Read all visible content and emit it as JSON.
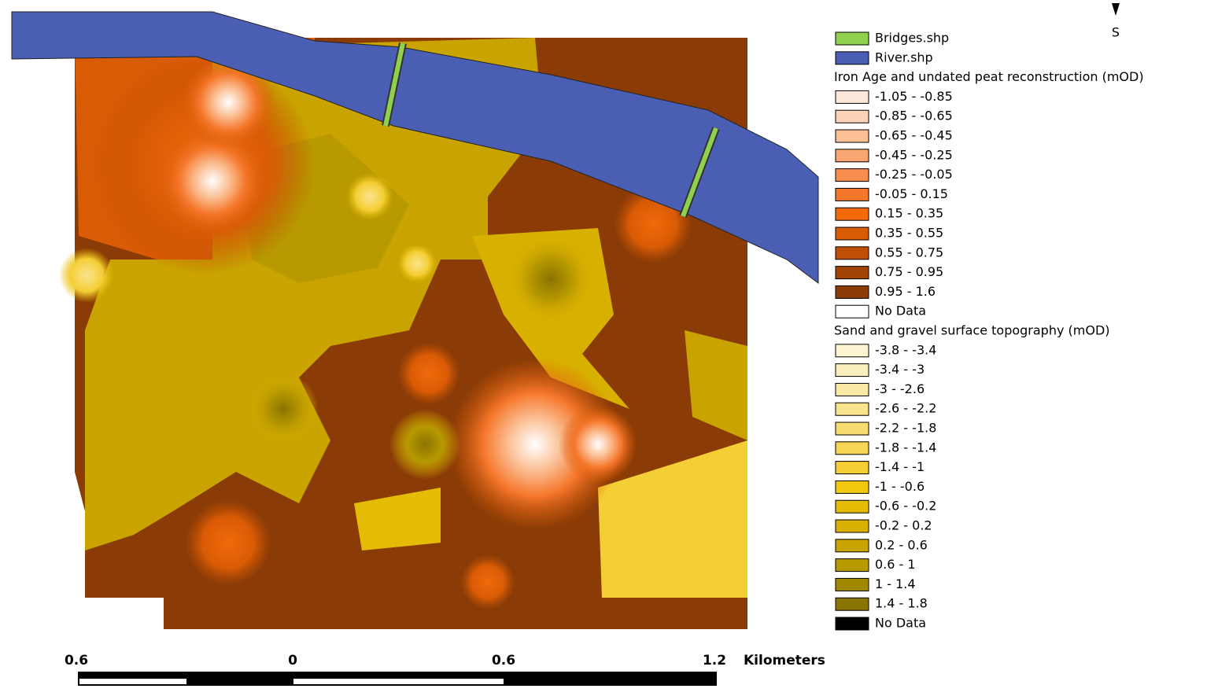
{
  "map": {
    "north_label": "S",
    "layers": [
      {
        "label": "Bridges.shp",
        "color": "#8fd14f"
      },
      {
        "label": "River.shp",
        "color": "#4a5fb4"
      }
    ],
    "groups": [
      {
        "title": "Iron Age and undated peat reconstruction (mOD)",
        "classes": [
          {
            "label": "-1.05 - -0.85",
            "color": "#fde6da"
          },
          {
            "label": "-0.85 - -0.65",
            "color": "#fcd3b8"
          },
          {
            "label": "-0.65 - -0.45",
            "color": "#fbc096"
          },
          {
            "label": "-0.45 - -0.25",
            "color": "#f9a672"
          },
          {
            "label": "-0.25 - -0.05",
            "color": "#f78e4e"
          },
          {
            "label": "-0.05 - 0.15",
            "color": "#f5772b"
          },
          {
            "label": "0.15 - 0.35",
            "color": "#f26a0a"
          },
          {
            "label": "0.35 - 0.55",
            "color": "#d95b05"
          },
          {
            "label": "0.55 - 0.75",
            "color": "#bf4f05"
          },
          {
            "label": "0.75 - 0.95",
            "color": "#a04305"
          },
          {
            "label": "0.95 - 1.6",
            "color": "#8a3b06"
          },
          {
            "label": "No Data",
            "color": "#ffffff"
          }
        ]
      },
      {
        "title": "Sand and gravel surface topography (mOD)",
        "classes": [
          {
            "label": "-3.8 - -3.4",
            "color": "#fdf4d2"
          },
          {
            "label": "-3.4 - -3",
            "color": "#fcefbf"
          },
          {
            "label": "-3 - -2.6",
            "color": "#fbe9a8"
          },
          {
            "label": "-2.6 - -2.2",
            "color": "#fae38e"
          },
          {
            "label": "-2.2 - -1.8",
            "color": "#f8dc72"
          },
          {
            "label": "-1.8 - -1.4",
            "color": "#f6d555"
          },
          {
            "label": "-1.4 - -1",
            "color": "#f4ce35"
          },
          {
            "label": "-1 - -0.6",
            "color": "#f2c80f"
          },
          {
            "label": "-0.6 - -0.2",
            "color": "#e5bc05"
          },
          {
            "label": "-0.2 - 0.2",
            "color": "#d8b000"
          },
          {
            "label": "0.2 - 0.6",
            "color": "#c9a400"
          },
          {
            "label": "0.6 - 1",
            "color": "#b89900"
          },
          {
            "label": "1 - 1.4",
            "color": "#9f8700"
          },
          {
            "label": "1.4 - 1.8",
            "color": "#8a7400"
          },
          {
            "label": "No Data",
            "color": "#000000"
          }
        ]
      }
    ],
    "scale_bar": {
      "labels": [
        "0.6",
        "0",
        "0.6",
        "1.2"
      ],
      "unit": "Kilometers"
    }
  }
}
